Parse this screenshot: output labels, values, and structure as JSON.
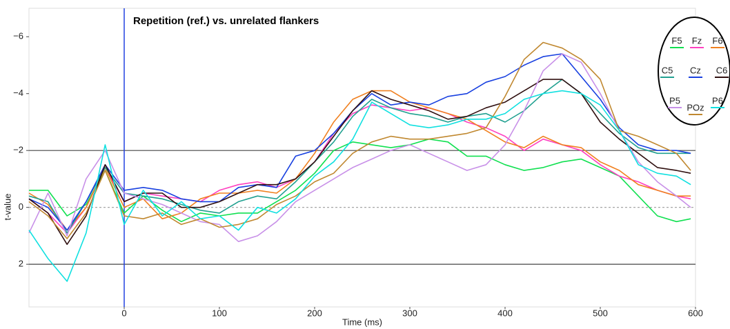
{
  "chart_data": {
    "type": "line",
    "title": "Repetition (ref.) vs. unrelated flankers",
    "xlabel": "Time (ms)",
    "ylabel": "t-value",
    "x": [
      -100,
      -80,
      -60,
      -40,
      -20,
      0,
      20,
      40,
      60,
      80,
      100,
      120,
      140,
      160,
      180,
      200,
      220,
      240,
      260,
      280,
      300,
      320,
      340,
      360,
      380,
      400,
      420,
      440,
      460,
      480,
      500,
      520,
      540,
      560,
      580,
      595
    ],
    "xlim": [
      -100,
      600
    ],
    "xticks": [
      0,
      100,
      200,
      300,
      400,
      500,
      600
    ],
    "ylim": [
      -7,
      3.5
    ],
    "y_inverted": true,
    "yticks": [
      {
        "value": -6,
        "label": "−6"
      },
      {
        "value": -4,
        "label": "−4"
      },
      {
        "value": -2,
        "label": "−2"
      },
      0,
      2
    ],
    "reference_lines": [
      {
        "axis": "y",
        "value": -2,
        "style": "solid",
        "color": "#444444"
      },
      {
        "axis": "y",
        "value": 2,
        "style": "solid",
        "color": "#444444"
      },
      {
        "axis": "y",
        "value": 0,
        "style": "dotted",
        "color": "#999999"
      },
      {
        "axis": "x",
        "value": 0,
        "style": "solid",
        "color": "#2040e0"
      }
    ],
    "legend": "upper right",
    "series": [
      {
        "name": "F5",
        "color": "#10e050",
        "values": [
          -0.6,
          -0.6,
          0.3,
          -0.1,
          -1.3,
          0.2,
          -0.4,
          0.1,
          0.5,
          0.2,
          0.3,
          0.2,
          0.2,
          -0.2,
          -0.6,
          -1.2,
          -2.0,
          -2.3,
          -2.2,
          -2.1,
          -2.2,
          -2.4,
          -2.3,
          -1.8,
          -1.8,
          -1.5,
          -1.3,
          -1.4,
          -1.6,
          -1.7,
          -1.4,
          -1.1,
          -0.4,
          0.3,
          0.5,
          0.4
        ]
      },
      {
        "name": "Fz",
        "color": "#ff40c0",
        "values": [
          -0.3,
          0.2,
          0.9,
          0.0,
          -1.4,
          -0.2,
          -0.5,
          -0.4,
          -0.3,
          -0.2,
          -0.6,
          -0.8,
          -0.9,
          -0.7,
          -1.0,
          -1.6,
          -2.6,
          -3.3,
          -3.6,
          -3.5,
          -3.4,
          -3.5,
          -3.3,
          -3.0,
          -2.8,
          -2.5,
          -2.0,
          -2.4,
          -2.2,
          -2.0,
          -1.5,
          -1.1,
          -0.9,
          -0.6,
          -0.4,
          -0.3
        ]
      },
      {
        "name": "F6",
        "color": "#f08020",
        "values": [
          -0.5,
          -0.1,
          0.8,
          0.0,
          -1.4,
          0.0,
          -0.3,
          0.4,
          0.2,
          -0.3,
          -0.5,
          -0.5,
          -0.6,
          -0.5,
          -1.0,
          -1.9,
          -3.0,
          -3.8,
          -4.1,
          -4.1,
          -3.7,
          -3.5,
          -3.3,
          -3.1,
          -2.7,
          -2.3,
          -2.1,
          -2.5,
          -2.2,
          -2.1,
          -1.6,
          -1.3,
          -0.8,
          -0.6,
          -0.4,
          -0.4
        ]
      },
      {
        "name": "C5",
        "color": "#20a090",
        "values": [
          -0.4,
          -0.2,
          0.9,
          -0.2,
          -1.4,
          -0.5,
          -0.4,
          -0.3,
          -0.1,
          0.1,
          0.2,
          -0.2,
          -0.4,
          -0.3,
          -0.9,
          -1.6,
          -2.3,
          -3.2,
          -3.8,
          -3.5,
          -3.3,
          -3.2,
          -3.0,
          -3.2,
          -3.3,
          -3.0,
          -3.4,
          -4.0,
          -4.5,
          -4.0,
          -3.3,
          -2.6,
          -2.1,
          -1.9,
          -1.9,
          -1.9
        ]
      },
      {
        "name": "Cz",
        "color": "#1840e0",
        "values": [
          -0.3,
          0.0,
          0.8,
          -0.2,
          -1.5,
          -0.6,
          -0.7,
          -0.6,
          -0.3,
          -0.2,
          -0.2,
          -0.7,
          -0.8,
          -0.7,
          -1.8,
          -2.0,
          -2.6,
          -3.4,
          -4.0,
          -3.6,
          -3.7,
          -3.6,
          -3.9,
          -4.0,
          -4.4,
          -4.6,
          -5.0,
          -5.3,
          -5.4,
          -4.6,
          -3.8,
          -2.8,
          -2.2,
          -2.0,
          -2.0,
          -1.9
        ]
      },
      {
        "name": "C6",
        "color": "#301010",
        "values": [
          -0.3,
          0.2,
          1.3,
          0.3,
          -1.5,
          -0.2,
          -0.5,
          -0.5,
          0.0,
          0.0,
          -0.2,
          -0.5,
          -0.8,
          -0.8,
          -1.0,
          -1.6,
          -2.5,
          -3.4,
          -4.1,
          -3.8,
          -3.6,
          -3.4,
          -3.1,
          -3.2,
          -3.5,
          -3.7,
          -4.1,
          -4.5,
          -4.5,
          -4.0,
          -3.0,
          -2.4,
          -1.9,
          -1.4,
          -1.3,
          -1.2
        ]
      },
      {
        "name": "P5",
        "color": "#c890e8",
        "values": [
          0.9,
          -0.5,
          1.0,
          -1.0,
          -2.0,
          -0.5,
          -0.3,
          -0.1,
          0.2,
          0.5,
          0.6,
          1.2,
          1.0,
          0.5,
          -0.2,
          -0.6,
          -1.0,
          -1.4,
          -1.7,
          -2.0,
          -2.2,
          -1.9,
          -1.6,
          -1.3,
          -1.5,
          -2.2,
          -3.4,
          -4.8,
          -5.4,
          -5.1,
          -4.0,
          -2.7,
          -1.6,
          -0.9,
          -0.4,
          0.0
        ]
      },
      {
        "name": "POz",
        "color": "#c08830",
        "values": [
          -0.2,
          0.3,
          1.1,
          0.2,
          -1.3,
          0.3,
          0.4,
          0.2,
          0.6,
          0.4,
          0.7,
          0.6,
          0.4,
          -0.1,
          -0.4,
          -0.9,
          -1.2,
          -1.9,
          -2.3,
          -2.5,
          -2.4,
          -2.4,
          -2.5,
          -2.6,
          -2.8,
          -3.9,
          -5.2,
          -5.8,
          -5.6,
          -5.2,
          -4.5,
          -2.7,
          -2.5,
          -2.2,
          -1.9,
          -1.3
        ]
      },
      {
        "name": "P6",
        "color": "#10e0e0",
        "values": [
          0.8,
          1.8,
          2.6,
          0.9,
          -2.2,
          0.6,
          -0.6,
          0.3,
          -0.2,
          0.4,
          0.3,
          0.8,
          0.0,
          0.2,
          -0.3,
          -1.1,
          -1.6,
          -2.4,
          -3.7,
          -3.3,
          -2.9,
          -2.8,
          -2.9,
          -3.1,
          -3.1,
          -3.3,
          -3.8,
          -4.0,
          -4.1,
          -4.0,
          -3.6,
          -2.7,
          -1.5,
          -1.2,
          -1.1,
          -0.8
        ]
      }
    ]
  }
}
